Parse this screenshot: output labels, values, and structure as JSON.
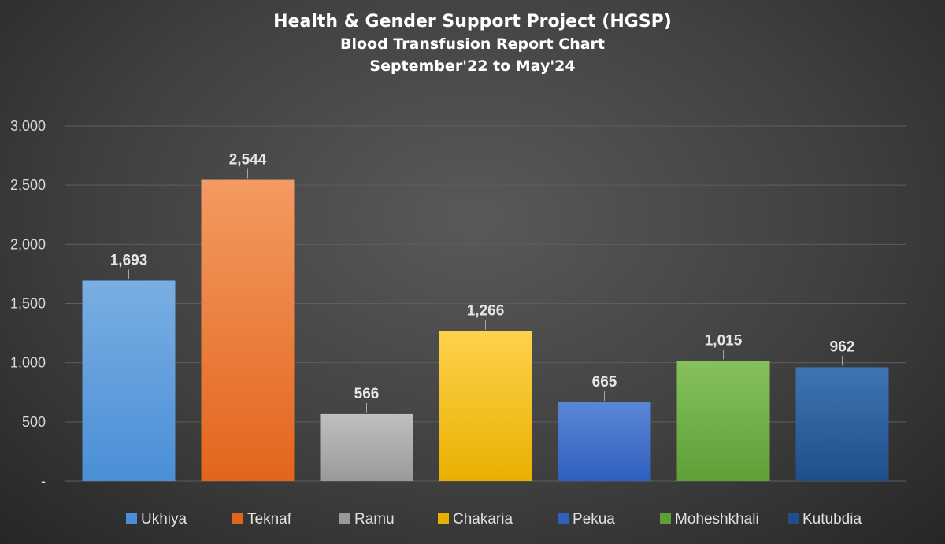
{
  "chart_data": {
    "type": "bar",
    "title": "Health & Gender Support Project (HGSP)",
    "subtitle": "Blood Transfusion Report Chart",
    "period": "September'22 to May'24",
    "categories": [
      "Ukhiya",
      "Teknaf",
      "Ramu",
      "Chakaria",
      "Pekua",
      "Moheshkhali",
      "Kutubdia"
    ],
    "values": [
      1693,
      2544,
      566,
      1266,
      665,
      1015,
      962
    ],
    "data_labels": [
      "1,693",
      "2,544",
      "566",
      "1,266",
      "665",
      "1,015",
      "962"
    ],
    "colors": [
      [
        "#7aaee3",
        "#4a8fd6"
      ],
      [
        "#f49a62",
        "#e2651c"
      ],
      [
        "#bfbfbf",
        "#9a9a9a"
      ],
      [
        "#ffd24d",
        "#e8b000"
      ],
      [
        "#5a86d6",
        "#2f5fbf"
      ],
      [
        "#86c25c",
        "#5e9f36"
      ],
      [
        "#3f74b2",
        "#1f4f8a"
      ]
    ],
    "ylim": [
      0,
      3000
    ],
    "yticks": [
      0,
      500,
      1000,
      1500,
      2000,
      2500,
      3000
    ],
    "ytick_labels": [
      "-",
      "500",
      "1,000",
      "1,500",
      "2,000",
      "2,500",
      "3,000"
    ],
    "grid": true,
    "legend_position": "bottom"
  }
}
